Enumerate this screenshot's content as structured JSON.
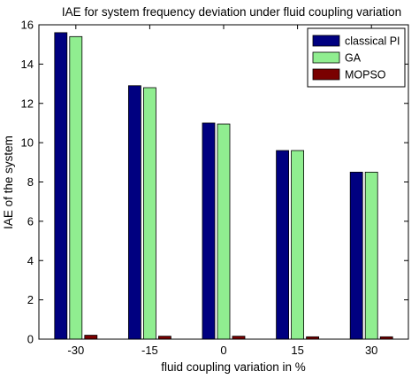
{
  "chart_data": {
    "type": "bar",
    "title": "IAE for system frequency deviation under fluid coupling variation",
    "xlabel": "fluid coupling variation in %",
    "ylabel": "IAE of the system",
    "categories": [
      "-30",
      "-15",
      "0",
      "15",
      "30"
    ],
    "ylim": [
      0,
      16
    ],
    "yticks": [
      "0",
      "2",
      "4",
      "6",
      "8",
      "10",
      "12",
      "14",
      "16"
    ],
    "grid": false,
    "legend_position": "top-right",
    "series": [
      {
        "name": "classical PI",
        "color": "#000080",
        "values": [
          15.6,
          12.9,
          11.0,
          9.6,
          8.5
        ]
      },
      {
        "name": "GA",
        "color": "#90ee90",
        "values": [
          15.4,
          12.8,
          10.95,
          9.6,
          8.5
        ]
      },
      {
        "name": "MOPSO",
        "color": "#7a0000",
        "values": [
          0.2,
          0.15,
          0.15,
          0.12,
          0.12
        ]
      }
    ]
  }
}
